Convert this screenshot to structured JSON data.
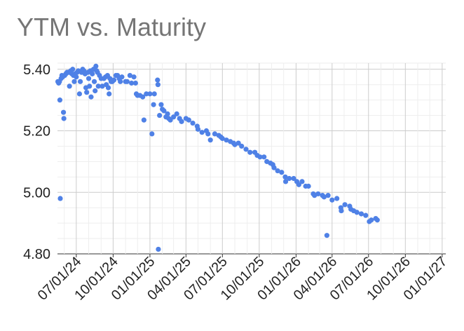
{
  "chart_data": {
    "type": "scatter",
    "title": "YTM vs. Maturity",
    "xlabel": "",
    "ylabel": "",
    "x_is_date": true,
    "xlim": [
      "2024-05-15",
      "2027-01-10"
    ],
    "ylim": [
      4.8,
      5.42
    ],
    "y_ticks": [
      "4.80",
      "5.00",
      "5.20",
      "5.40"
    ],
    "x_ticks": [
      "07/01/24",
      "10/01/24",
      "01/01/25",
      "04/01/25",
      "07/01/25",
      "10/01/25",
      "01/01/26",
      "04/01/26",
      "07/01/26",
      "10/01/26",
      "01/01/27"
    ],
    "x_tick_dates": [
      "2024-07-01",
      "2024-10-01",
      "2025-01-01",
      "2025-04-01",
      "2025-07-01",
      "2025-10-01",
      "2026-01-01",
      "2026-04-01",
      "2026-07-01",
      "2026-10-01",
      "2027-01-01"
    ],
    "grid": true,
    "legend": "none",
    "marker_color": "#4f81e6",
    "points": [
      [
        "2024-05-16",
        5.36
      ],
      [
        "2024-05-18",
        5.355
      ],
      [
        "2024-05-20",
        5.36
      ],
      [
        "2024-05-21",
        5.3
      ],
      [
        "2024-05-22",
        4.98
      ],
      [
        "2024-05-24",
        5.37
      ],
      [
        "2024-05-26",
        5.38
      ],
      [
        "2024-05-28",
        5.375
      ],
      [
        "2024-05-30",
        5.26
      ],
      [
        "2024-05-31",
        5.24
      ],
      [
        "2024-06-02",
        5.38
      ],
      [
        "2024-06-05",
        5.385
      ],
      [
        "2024-06-08",
        5.39
      ],
      [
        "2024-06-12",
        5.39
      ],
      [
        "2024-06-14",
        5.345
      ],
      [
        "2024-06-17",
        5.395
      ],
      [
        "2024-06-20",
        5.385
      ],
      [
        "2024-06-22",
        5.4
      ],
      [
        "2024-06-24",
        5.38
      ],
      [
        "2024-06-26",
        5.36
      ],
      [
        "2024-06-28",
        5.385
      ],
      [
        "2024-07-01",
        5.375
      ],
      [
        "2024-07-03",
        5.39
      ],
      [
        "2024-07-06",
        5.395
      ],
      [
        "2024-07-09",
        5.32
      ],
      [
        "2024-07-11",
        5.36
      ],
      [
        "2024-07-14",
        5.39
      ],
      [
        "2024-07-17",
        5.4
      ],
      [
        "2024-07-20",
        5.395
      ],
      [
        "2024-07-23",
        5.385
      ],
      [
        "2024-07-25",
        5.34
      ],
      [
        "2024-07-27",
        5.325
      ],
      [
        "2024-07-30",
        5.39
      ],
      [
        "2024-08-01",
        5.37
      ],
      [
        "2024-08-03",
        5.345
      ],
      [
        "2024-08-05",
        5.395
      ],
      [
        "2024-08-07",
        5.31
      ],
      [
        "2024-08-10",
        5.385
      ],
      [
        "2024-08-13",
        5.4
      ],
      [
        "2024-08-15",
        5.36
      ],
      [
        "2024-08-17",
        5.33
      ],
      [
        "2024-08-19",
        5.41
      ],
      [
        "2024-08-21",
        5.395
      ],
      [
        "2024-08-23",
        5.39
      ],
      [
        "2024-08-25",
        5.345
      ],
      [
        "2024-08-28",
        5.38
      ],
      [
        "2024-09-01",
        5.37
      ],
      [
        "2024-09-04",
        5.345
      ],
      [
        "2024-09-08",
        5.37
      ],
      [
        "2024-09-12",
        5.375
      ],
      [
        "2024-09-14",
        5.35
      ],
      [
        "2024-09-17",
        5.38
      ],
      [
        "2024-09-19",
        5.34
      ],
      [
        "2024-09-21",
        5.32
      ],
      [
        "2024-09-23",
        5.37
      ],
      [
        "2024-09-26",
        5.36
      ],
      [
        "2024-09-29",
        5.36
      ],
      [
        "2024-10-03",
        5.365
      ],
      [
        "2024-10-08",
        5.38
      ],
      [
        "2024-10-12",
        5.38
      ],
      [
        "2024-10-16",
        5.37
      ],
      [
        "2024-10-19",
        5.36
      ],
      [
        "2024-10-23",
        5.375
      ],
      [
        "2024-11-01",
        5.36
      ],
      [
        "2024-11-05",
        5.36
      ],
      [
        "2024-11-12",
        5.38
      ],
      [
        "2024-11-16",
        5.355
      ],
      [
        "2024-11-22",
        5.375
      ],
      [
        "2024-11-26",
        5.355
      ],
      [
        "2024-11-28",
        5.32
      ],
      [
        "2024-12-01",
        5.315
      ],
      [
        "2024-12-07",
        5.315
      ],
      [
        "2024-12-14",
        5.31
      ],
      [
        "2024-12-17",
        5.235
      ],
      [
        "2024-12-23",
        5.32
      ],
      [
        "2025-01-01",
        5.32
      ],
      [
        "2025-01-06",
        5.19
      ],
      [
        "2025-01-10",
        5.285
      ],
      [
        "2025-01-12",
        5.32
      ],
      [
        "2025-01-20",
        5.365
      ],
      [
        "2025-01-21",
        5.35
      ],
      [
        "2025-01-22",
        4.815
      ],
      [
        "2025-01-25",
        5.25
      ],
      [
        "2025-01-29",
        5.285
      ],
      [
        "2025-02-01",
        5.27
      ],
      [
        "2025-02-05",
        5.265
      ],
      [
        "2025-02-10",
        5.245
      ],
      [
        "2025-02-14",
        5.255
      ],
      [
        "2025-02-17",
        5.24
      ],
      [
        "2025-02-21",
        5.235
      ],
      [
        "2025-03-01",
        5.245
      ],
      [
        "2025-03-09",
        5.255
      ],
      [
        "2025-03-16",
        5.24
      ],
      [
        "2025-03-21",
        5.23
      ],
      [
        "2025-04-01",
        5.24
      ],
      [
        "2025-04-08",
        5.235
      ],
      [
        "2025-04-18",
        5.225
      ],
      [
        "2025-04-29",
        5.215
      ],
      [
        "2025-05-01",
        5.205
      ],
      [
        "2025-05-11",
        5.195
      ],
      [
        "2025-05-22",
        5.2
      ],
      [
        "2025-05-26",
        5.19
      ],
      [
        "2025-06-01",
        5.17
      ],
      [
        "2025-06-12",
        5.19
      ],
      [
        "2025-06-22",
        5.185
      ],
      [
        "2025-06-27",
        5.18
      ],
      [
        "2025-07-01",
        5.175
      ],
      [
        "2025-07-11",
        5.17
      ],
      [
        "2025-07-21",
        5.165
      ],
      [
        "2025-07-29",
        5.16
      ],
      [
        "2025-08-01",
        5.155
      ],
      [
        "2025-08-10",
        5.16
      ],
      [
        "2025-08-18",
        5.15
      ],
      [
        "2025-08-29",
        5.14
      ],
      [
        "2025-09-08",
        5.13
      ],
      [
        "2025-09-20",
        5.13
      ],
      [
        "2025-09-26",
        5.12
      ],
      [
        "2025-10-03",
        5.115
      ],
      [
        "2025-10-13",
        5.115
      ],
      [
        "2025-10-20",
        5.1
      ],
      [
        "2025-10-29",
        5.095
      ],
      [
        "2025-11-04",
        5.09
      ],
      [
        "2025-11-07",
        5.08
      ],
      [
        "2025-11-16",
        5.07
      ],
      [
        "2025-11-26",
        5.065
      ],
      [
        "2025-12-05",
        5.05
      ],
      [
        "2025-12-06",
        5.035
      ],
      [
        "2025-12-15",
        5.045
      ],
      [
        "2025-12-26",
        5.045
      ],
      [
        "2026-01-03",
        5.035
      ],
      [
        "2026-01-08",
        5.025
      ],
      [
        "2026-01-16",
        5.035
      ],
      [
        "2026-01-25",
        5.02
      ],
      [
        "2026-02-01",
        5.02
      ],
      [
        "2026-02-13",
        4.995
      ],
      [
        "2026-02-16",
        4.99
      ],
      [
        "2026-02-25",
        4.995
      ],
      [
        "2026-03-08",
        4.99
      ],
      [
        "2026-03-12",
        4.985
      ],
      [
        "2026-03-19",
        4.86
      ],
      [
        "2026-03-22",
        4.99
      ],
      [
        "2026-04-01",
        4.975
      ],
      [
        "2026-04-13",
        4.98
      ],
      [
        "2026-04-23",
        4.95
      ],
      [
        "2026-04-24",
        4.94
      ],
      [
        "2026-05-03",
        4.96
      ],
      [
        "2026-05-15",
        4.955
      ],
      [
        "2026-05-18",
        4.945
      ],
      [
        "2026-05-25",
        4.94
      ],
      [
        "2026-06-02",
        4.935
      ],
      [
        "2026-06-13",
        4.93
      ],
      [
        "2026-06-24",
        4.925
      ],
      [
        "2026-07-03",
        4.905
      ],
      [
        "2026-07-08",
        4.91
      ],
      [
        "2026-07-19",
        4.915
      ],
      [
        "2026-07-23",
        4.91
      ]
    ]
  }
}
